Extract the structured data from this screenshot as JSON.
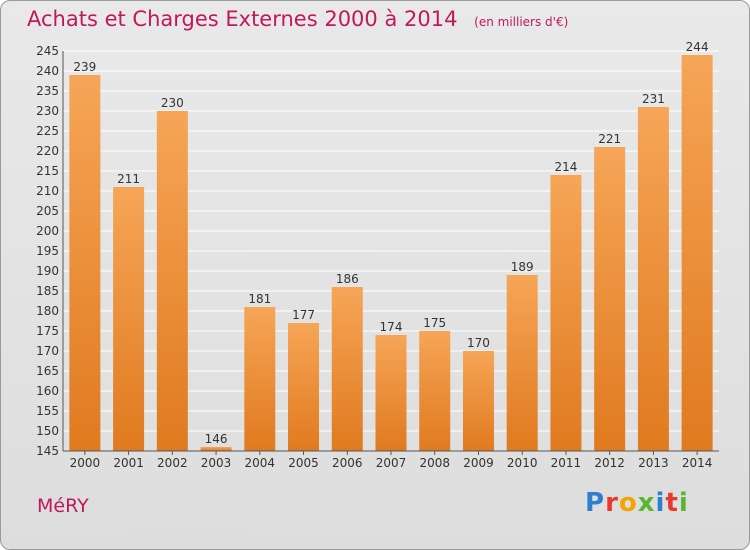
{
  "header": {
    "title": "Achats et Charges Externes 2000 à 2014",
    "subtitle": "(en milliers d'€)"
  },
  "footer": {
    "city": "MéRY",
    "logo_letters": [
      "P",
      "r",
      "o",
      "x",
      "i",
      "t",
      "i"
    ]
  },
  "colors": {
    "bar_light": "#f5a04b",
    "bar_dark": "#e07a1f",
    "title": "#c2185b",
    "grid": "#ffffff"
  },
  "chart_data": {
    "type": "bar",
    "categories": [
      "2000",
      "2001",
      "2002",
      "2003",
      "2004",
      "2005",
      "2006",
      "2007",
      "2008",
      "2009",
      "2010",
      "2011",
      "2012",
      "2013",
      "2014"
    ],
    "values": [
      239,
      211,
      230,
      146,
      181,
      177,
      186,
      174,
      175,
      170,
      189,
      214,
      221,
      231,
      244
    ],
    "ylim": [
      145,
      245
    ],
    "yticks": [
      145,
      150,
      155,
      160,
      165,
      170,
      175,
      180,
      185,
      190,
      195,
      200,
      205,
      210,
      215,
      220,
      225,
      230,
      235,
      240,
      245
    ],
    "grid": true,
    "data_labels": true
  }
}
